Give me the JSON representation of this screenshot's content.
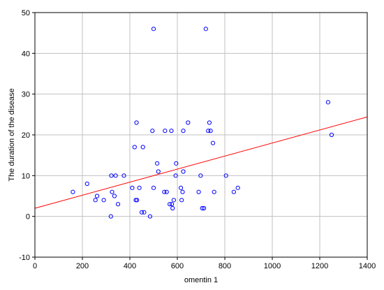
{
  "chart_data": {
    "type": "scatter",
    "title": "",
    "xlabel": "omentin 1",
    "ylabel": "The duration of the disease",
    "xlim": [
      0,
      1400
    ],
    "ylim": [
      -10,
      50
    ],
    "xticks": [
      0,
      200,
      400,
      600,
      800,
      1000,
      1200,
      1400
    ],
    "yticks": [
      -10,
      0,
      10,
      20,
      30,
      40,
      50
    ],
    "xtick_labels": [
      "0",
      "200",
      "400",
      "600",
      "800",
      "1000",
      "1200",
      "1400"
    ],
    "ytick_labels": [
      "-10",
      "0",
      "10",
      "20",
      "30",
      "40",
      "50"
    ],
    "grid": true,
    "legend": "none",
    "colors": {
      "points": "#0000ff",
      "fit_line": "#ff0000",
      "grid": "#c0c0c0"
    },
    "points": [
      [
        160,
        6
      ],
      [
        220,
        8
      ],
      [
        255,
        4
      ],
      [
        262,
        5
      ],
      [
        290,
        4
      ],
      [
        320,
        0
      ],
      [
        322,
        10
      ],
      [
        325,
        6
      ],
      [
        335,
        5
      ],
      [
        340,
        10
      ],
      [
        350,
        3
      ],
      [
        375,
        10
      ],
      [
        410,
        7
      ],
      [
        420,
        17
      ],
      [
        425,
        4
      ],
      [
        428,
        23
      ],
      [
        430,
        4
      ],
      [
        440,
        7
      ],
      [
        450,
        1
      ],
      [
        455,
        17
      ],
      [
        460,
        1
      ],
      [
        485,
        0
      ],
      [
        495,
        21
      ],
      [
        500,
        46
      ],
      [
        500,
        7
      ],
      [
        515,
        13
      ],
      [
        520,
        11
      ],
      [
        545,
        6
      ],
      [
        548,
        21
      ],
      [
        555,
        6
      ],
      [
        568,
        3
      ],
      [
        575,
        21
      ],
      [
        577,
        3
      ],
      [
        580,
        2
      ],
      [
        585,
        4
      ],
      [
        593,
        10
      ],
      [
        595,
        13
      ],
      [
        615,
        7
      ],
      [
        618,
        4
      ],
      [
        622,
        6
      ],
      [
        625,
        11
      ],
      [
        625,
        21
      ],
      [
        645,
        23
      ],
      [
        690,
        6
      ],
      [
        698,
        10
      ],
      [
        705,
        2
      ],
      [
        712,
        2
      ],
      [
        720,
        46
      ],
      [
        730,
        21
      ],
      [
        735,
        23
      ],
      [
        740,
        21
      ],
      [
        750,
        18
      ],
      [
        755,
        6
      ],
      [
        805,
        10
      ],
      [
        838,
        6
      ],
      [
        855,
        7
      ],
      [
        1235,
        28
      ],
      [
        1250,
        20
      ]
    ],
    "fit_line": {
      "x": [
        0,
        1400
      ],
      "y": [
        2.0,
        24.4
      ]
    }
  }
}
